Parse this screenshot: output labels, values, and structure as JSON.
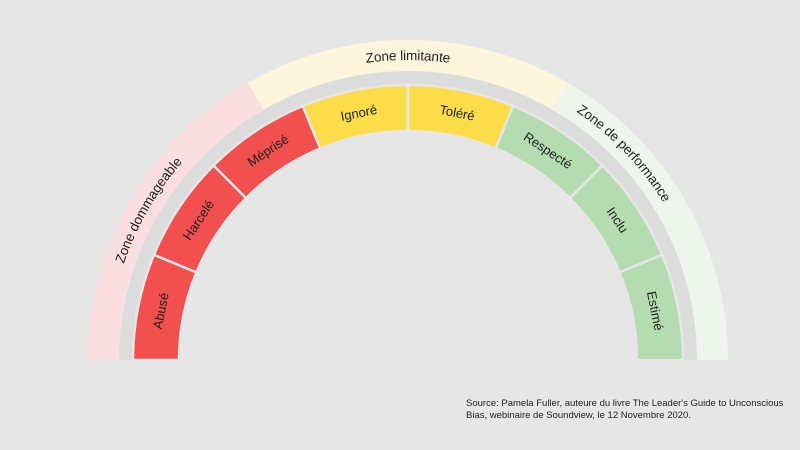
{
  "diagram": {
    "zones": [
      {
        "label": "Zone dommageable",
        "color": "#fbdfe0"
      },
      {
        "label": "Zone limitante",
        "color": "#fdf6dc"
      },
      {
        "label": "Zone de performance",
        "color": "#eef5ec"
      }
    ],
    "segments": [
      {
        "label": "Abusé",
        "color": "#f24f4f"
      },
      {
        "label": "Harcelé",
        "color": "#f24f4f"
      },
      {
        "label": "Méprisé",
        "color": "#f24f4f"
      },
      {
        "label": "Ignoré",
        "color": "#fcdc48"
      },
      {
        "label": "Toléré",
        "color": "#fcdc48"
      },
      {
        "label": "Respecté",
        "color": "#b4dcb0"
      },
      {
        "label": "Inclu",
        "color": "#b4dcb0"
      },
      {
        "label": "Estimé",
        "color": "#b4dcb0"
      }
    ],
    "track_color": "#dcdcdc",
    "divider_color": "#e6e6e6"
  },
  "source": {
    "line1": "Source: Pamela Fuller, auteure du livre The Leader's Guide to Unconscious",
    "line2": "Bias, webinaire de Soundview, le 12 Novembre 2020."
  }
}
